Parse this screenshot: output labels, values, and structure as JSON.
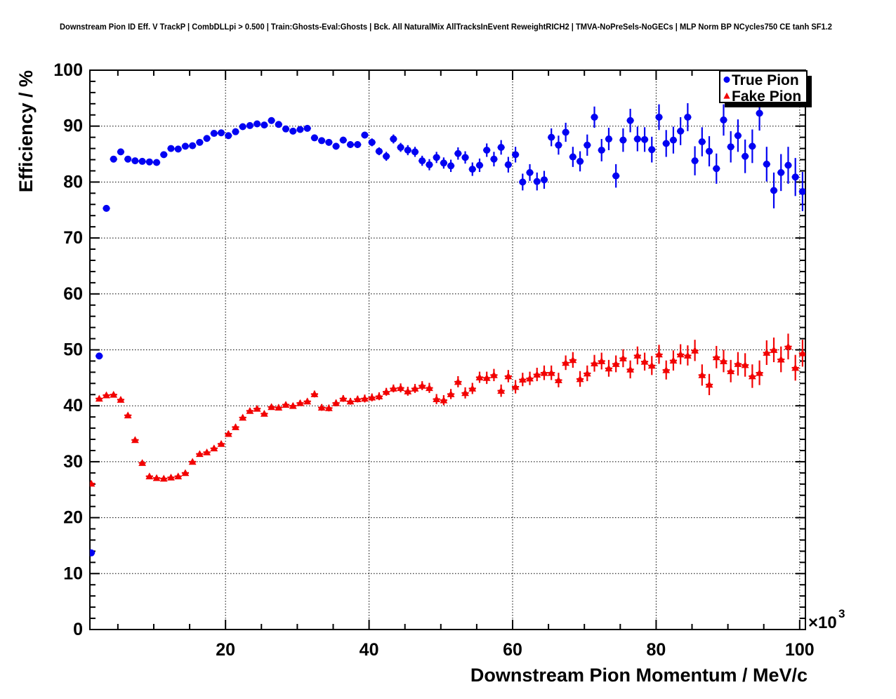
{
  "title": "Downstream Pion ID Eff. V TrackP | CombDLLpi > 0.500 | Train:Ghosts-Eval:Ghosts | Bck. All NaturalMix AllTracksInEvent ReweightRICH2 | TMVA-NoPreSels-NoGECs | MLP Norm BP NCycles750 CE tanh SF1.2",
  "legend": {
    "position": "top-right",
    "entries": [
      {
        "label": "True Pion",
        "marker": "circle",
        "color": "#0202f2"
      },
      {
        "label": "Fake Pion",
        "marker": "triangle",
        "color": "#f20202"
      }
    ]
  },
  "colors": {
    "true_pion": "#0202f2",
    "fake_pion": "#f20202",
    "frame": "#000000",
    "grid": "#000000",
    "background": "#ffffff"
  },
  "chart_data": {
    "type": "scatter",
    "title": "Downstream Pion ID Eff. V TrackP | CombDLLpi > 0.500 | Train:Ghosts-Eval:Ghosts | Bck. All NaturalMix AllTracksInEvent ReweightRICH2 | TMVA-NoPreSels-NoGECs | MLP Norm BP NCycles750 CE tanh SF1.2",
    "xlabel": "Downstream Pion Momentum / MeV/c",
    "ylabel": "Efficiency / %",
    "x_scale": {
      "base": "×10",
      "exp": "3"
    },
    "xlim": [
      1.1,
      100.8
    ],
    "ylim": [
      0,
      100
    ],
    "x_ticks": [
      20,
      40,
      60,
      80,
      100
    ],
    "y_ticks": [
      0,
      10,
      20,
      30,
      40,
      50,
      60,
      70,
      80,
      90,
      100
    ],
    "x_minor_step": 5,
    "y_minor_step": 2,
    "grid": "dotted-at-major-ticks",
    "legend_position": "top-right",
    "x_bin_halfwidth": 0.5,
    "series": [
      {
        "name": "True Pion",
        "marker": "circle",
        "color": "#0202f2",
        "points": [
          [
            1.3,
            13.7,
            0.4
          ],
          [
            2.4,
            48.9,
            0.5
          ],
          [
            3.4,
            75.3,
            0.5
          ],
          [
            4.4,
            84.1,
            0.4
          ],
          [
            5.4,
            85.4,
            0.4
          ],
          [
            6.4,
            84.1,
            0.4
          ],
          [
            7.4,
            83.8,
            0.4
          ],
          [
            8.4,
            83.7,
            0.4
          ],
          [
            9.4,
            83.6,
            0.4
          ],
          [
            10.4,
            83.5,
            0.4
          ],
          [
            11.4,
            84.9,
            0.4
          ],
          [
            12.4,
            86.0,
            0.4
          ],
          [
            13.4,
            85.9,
            0.4
          ],
          [
            14.4,
            86.4,
            0.4
          ],
          [
            15.4,
            86.5,
            0.4
          ],
          [
            16.4,
            87.1,
            0.4
          ],
          [
            17.4,
            87.8,
            0.4
          ],
          [
            18.4,
            88.7,
            0.4
          ],
          [
            19.4,
            88.8,
            0.4
          ],
          [
            20.4,
            88.3,
            0.4
          ],
          [
            21.4,
            89.0,
            0.4
          ],
          [
            22.4,
            89.9,
            0.4
          ],
          [
            23.4,
            90.1,
            0.4
          ],
          [
            24.4,
            90.4,
            0.4
          ],
          [
            25.4,
            90.2,
            0.4
          ],
          [
            26.4,
            91.0,
            0.5
          ],
          [
            27.4,
            90.3,
            0.5
          ],
          [
            28.4,
            89.5,
            0.5
          ],
          [
            29.4,
            89.1,
            0.5
          ],
          [
            30.4,
            89.4,
            0.5
          ],
          [
            31.4,
            89.6,
            0.5
          ],
          [
            32.4,
            87.9,
            0.5
          ],
          [
            33.4,
            87.4,
            0.5
          ],
          [
            34.4,
            87.1,
            0.6
          ],
          [
            35.4,
            86.4,
            0.6
          ],
          [
            36.4,
            87.5,
            0.6
          ],
          [
            37.4,
            86.7,
            0.6
          ],
          [
            38.4,
            86.7,
            0.6
          ],
          [
            39.4,
            88.4,
            0.6
          ],
          [
            40.4,
            87.1,
            0.7
          ],
          [
            41.4,
            85.5,
            0.7
          ],
          [
            42.4,
            84.6,
            0.8
          ],
          [
            43.4,
            87.7,
            0.8
          ],
          [
            44.4,
            86.2,
            0.8
          ],
          [
            45.4,
            85.7,
            0.9
          ],
          [
            46.4,
            85.4,
            0.9
          ],
          [
            47.4,
            83.8,
            0.9
          ],
          [
            48.4,
            83.1,
            1.0
          ],
          [
            49.4,
            84.4,
            1.0
          ],
          [
            50.4,
            83.4,
            1.0
          ],
          [
            51.4,
            82.9,
            1.1
          ],
          [
            52.4,
            85.1,
            1.1
          ],
          [
            53.4,
            84.4,
            1.1
          ],
          [
            54.4,
            82.3,
            1.2
          ],
          [
            55.4,
            83.0,
            1.2
          ],
          [
            56.4,
            85.7,
            1.2
          ],
          [
            57.4,
            84.1,
            1.3
          ],
          [
            58.4,
            86.2,
            1.3
          ],
          [
            59.4,
            83.1,
            1.4
          ],
          [
            60.4,
            84.9,
            1.4
          ],
          [
            61.4,
            80.0,
            1.5
          ],
          [
            62.4,
            81.7,
            1.5
          ],
          [
            63.4,
            80.1,
            1.6
          ],
          [
            64.4,
            80.4,
            1.6
          ],
          [
            65.4,
            88.0,
            1.6
          ],
          [
            66.4,
            86.6,
            1.7
          ],
          [
            67.4,
            88.9,
            1.7
          ],
          [
            68.4,
            84.5,
            1.8
          ],
          [
            69.4,
            83.7,
            1.8
          ],
          [
            70.4,
            86.6,
            1.9
          ],
          [
            71.4,
            91.6,
            1.9
          ],
          [
            72.4,
            85.7,
            2.0
          ],
          [
            73.4,
            87.7,
            2.0
          ],
          [
            74.4,
            81.1,
            2.1
          ],
          [
            75.4,
            87.5,
            2.1
          ],
          [
            76.4,
            91.0,
            2.1
          ],
          [
            77.4,
            87.7,
            2.2
          ],
          [
            78.4,
            87.6,
            2.2
          ],
          [
            79.4,
            85.8,
            2.3
          ],
          [
            80.4,
            91.6,
            2.3
          ],
          [
            81.4,
            86.9,
            2.4
          ],
          [
            82.4,
            87.5,
            2.4
          ],
          [
            83.4,
            89.1,
            2.5
          ],
          [
            84.4,
            91.6,
            2.5
          ],
          [
            85.4,
            83.8,
            2.6
          ],
          [
            86.4,
            87.2,
            2.6
          ],
          [
            87.4,
            85.5,
            2.7
          ],
          [
            88.4,
            82.4,
            2.7
          ],
          [
            89.4,
            91.1,
            2.8
          ],
          [
            90.4,
            86.3,
            2.8
          ],
          [
            91.4,
            88.3,
            2.9
          ],
          [
            92.4,
            84.6,
            3.0
          ],
          [
            93.4,
            86.4,
            3.0
          ],
          [
            94.4,
            92.3,
            3.1
          ],
          [
            95.4,
            83.2,
            3.1
          ],
          [
            96.4,
            78.5,
            3.2
          ],
          [
            97.4,
            81.7,
            3.3
          ],
          [
            98.4,
            83.0,
            3.3
          ],
          [
            99.4,
            80.9,
            3.4
          ],
          [
            100.4,
            78.3,
            3.5
          ]
        ]
      },
      {
        "name": "Fake Pion",
        "marker": "triangle",
        "color": "#f20202",
        "points": [
          [
            1.3,
            26.1,
            0.4
          ],
          [
            2.4,
            41.3,
            0.4
          ],
          [
            3.4,
            41.9,
            0.4
          ],
          [
            4.4,
            42.0,
            0.4
          ],
          [
            5.4,
            41.1,
            0.4
          ],
          [
            6.4,
            38.3,
            0.4
          ],
          [
            7.4,
            33.9,
            0.4
          ],
          [
            8.4,
            29.8,
            0.4
          ],
          [
            9.4,
            27.4,
            0.4
          ],
          [
            10.4,
            27.1,
            0.4
          ],
          [
            11.4,
            27.0,
            0.4
          ],
          [
            12.4,
            27.2,
            0.4
          ],
          [
            13.4,
            27.4,
            0.4
          ],
          [
            14.4,
            28.0,
            0.4
          ],
          [
            15.4,
            30.0,
            0.4
          ],
          [
            16.4,
            31.4,
            0.4
          ],
          [
            17.4,
            31.7,
            0.4
          ],
          [
            18.4,
            32.4,
            0.5
          ],
          [
            19.4,
            33.2,
            0.5
          ],
          [
            20.4,
            35.0,
            0.5
          ],
          [
            21.4,
            36.2,
            0.5
          ],
          [
            22.4,
            37.9,
            0.5
          ],
          [
            23.4,
            39.1,
            0.5
          ],
          [
            24.4,
            39.5,
            0.5
          ],
          [
            25.4,
            38.6,
            0.5
          ],
          [
            26.4,
            39.8,
            0.5
          ],
          [
            27.4,
            39.7,
            0.5
          ],
          [
            28.4,
            40.2,
            0.5
          ],
          [
            29.4,
            40.0,
            0.5
          ],
          [
            30.4,
            40.5,
            0.5
          ],
          [
            31.4,
            40.8,
            0.5
          ],
          [
            32.4,
            42.1,
            0.6
          ],
          [
            33.4,
            39.7,
            0.6
          ],
          [
            34.4,
            39.6,
            0.6
          ],
          [
            35.4,
            40.5,
            0.6
          ],
          [
            36.4,
            41.3,
            0.6
          ],
          [
            37.4,
            40.8,
            0.6
          ],
          [
            38.4,
            41.2,
            0.6
          ],
          [
            39.4,
            41.3,
            0.7
          ],
          [
            40.4,
            41.5,
            0.7
          ],
          [
            41.4,
            41.7,
            0.7
          ],
          [
            42.4,
            42.5,
            0.7
          ],
          [
            43.4,
            43.1,
            0.7
          ],
          [
            44.4,
            43.2,
            0.8
          ],
          [
            45.4,
            42.6,
            0.8
          ],
          [
            46.4,
            43.1,
            0.8
          ],
          [
            47.4,
            43.6,
            0.8
          ],
          [
            48.4,
            43.2,
            0.9
          ],
          [
            49.4,
            41.2,
            0.9
          ],
          [
            50.4,
            41.0,
            0.9
          ],
          [
            51.4,
            42.1,
            0.9
          ],
          [
            52.4,
            44.3,
            1.0
          ],
          [
            53.4,
            42.3,
            1.0
          ],
          [
            54.4,
            43.1,
            1.0
          ],
          [
            55.4,
            45.1,
            1.0
          ],
          [
            56.4,
            45.0,
            1.1
          ],
          [
            57.4,
            45.5,
            1.1
          ],
          [
            58.4,
            42.7,
            1.1
          ],
          [
            59.4,
            45.3,
            1.1
          ],
          [
            60.4,
            43.4,
            1.2
          ],
          [
            61.4,
            44.7,
            1.2
          ],
          [
            62.4,
            44.9,
            1.2
          ],
          [
            63.4,
            45.6,
            1.2
          ],
          [
            64.4,
            45.9,
            1.3
          ],
          [
            65.4,
            45.9,
            1.3
          ],
          [
            66.4,
            44.6,
            1.3
          ],
          [
            67.4,
            47.7,
            1.3
          ],
          [
            68.4,
            48.2,
            1.4
          ],
          [
            69.4,
            44.8,
            1.4
          ],
          [
            70.4,
            45.8,
            1.4
          ],
          [
            71.4,
            47.6,
            1.5
          ],
          [
            72.4,
            48.0,
            1.5
          ],
          [
            73.4,
            46.7,
            1.5
          ],
          [
            74.4,
            47.5,
            1.5
          ],
          [
            75.4,
            48.5,
            1.6
          ],
          [
            76.4,
            46.5,
            1.6
          ],
          [
            77.4,
            49.0,
            1.6
          ],
          [
            78.4,
            47.9,
            1.6
          ],
          [
            79.4,
            47.2,
            1.7
          ],
          [
            80.4,
            49.2,
            1.7
          ],
          [
            81.4,
            46.4,
            1.7
          ],
          [
            82.4,
            48.1,
            1.8
          ],
          [
            83.4,
            49.2,
            1.8
          ],
          [
            84.4,
            49.0,
            1.8
          ],
          [
            85.4,
            49.9,
            1.9
          ],
          [
            86.4,
            45.5,
            1.9
          ],
          [
            87.4,
            43.8,
            1.9
          ],
          [
            88.4,
            48.7,
            2.0
          ],
          [
            89.4,
            48.0,
            2.0
          ],
          [
            90.4,
            46.2,
            2.0
          ],
          [
            91.4,
            47.5,
            2.1
          ],
          [
            92.4,
            47.3,
            2.1
          ],
          [
            93.4,
            45.3,
            2.1
          ],
          [
            94.4,
            45.9,
            2.2
          ],
          [
            95.4,
            49.5,
            2.2
          ],
          [
            96.4,
            50.0,
            2.2
          ],
          [
            97.4,
            48.3,
            2.3
          ],
          [
            98.4,
            50.6,
            2.3
          ],
          [
            99.4,
            46.8,
            2.3
          ],
          [
            100.4,
            49.4,
            2.4
          ]
        ]
      }
    ]
  }
}
